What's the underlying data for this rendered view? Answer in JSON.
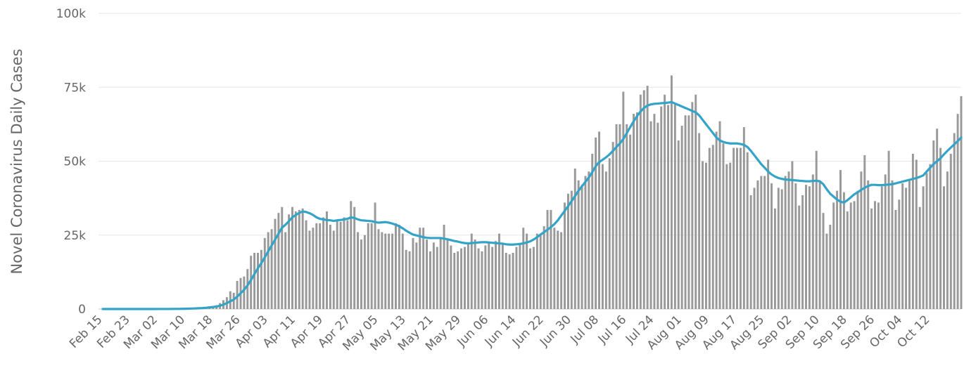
{
  "chart_data": {
    "type": "bar",
    "title": "",
    "ylabel": "Novel Coronavirus Daily Cases",
    "xlabel": "",
    "ylim": [
      0,
      100000
    ],
    "y_ticks": [
      0,
      25000,
      50000,
      75000,
      100000
    ],
    "y_tick_labels": [
      "0",
      "25k",
      "50k",
      "75k",
      "100k"
    ],
    "x_start": "2020-02-15",
    "x_end": "2020-10-16",
    "x_tick_labels": [
      "Feb 15",
      "Feb 23",
      "Mar 02",
      "Mar 10",
      "Mar 18",
      "Mar 26",
      "Apr 03",
      "Apr 11",
      "Apr 19",
      "Apr 27",
      "May 05",
      "May 13",
      "May 21",
      "May 29",
      "Jun 06",
      "Jun 14",
      "Jun 22",
      "Jun 30",
      "Jul 08",
      "Jul 16",
      "Jul 24",
      "Aug 01",
      "Aug 09",
      "Aug 17",
      "Aug 25",
      "Sep 02",
      "Sep 10",
      "Sep 18",
      "Sep 26",
      "Oct 04",
      "Oct 12"
    ],
    "grid": "horizontal",
    "colors": {
      "bars": "#999999",
      "moving_average": "#33a3c8",
      "grid": "#e6e6e6",
      "text": "#666666"
    },
    "series": [
      {
        "type": "bar",
        "values": [
          0,
          0,
          0,
          0,
          0,
          0,
          0,
          0,
          0,
          0,
          0,
          0,
          0,
          0,
          0,
          0,
          10,
          10,
          20,
          20,
          30,
          50,
          60,
          80,
          100,
          200,
          250,
          300,
          400,
          500,
          700,
          900,
          1000,
          1300,
          2000,
          3000,
          4000,
          6000,
          5500,
          9500,
          10500,
          11000,
          13500,
          18000,
          19000,
          19000,
          20000,
          24000,
          26000,
          27000,
          30500,
          32500,
          34500,
          26000,
          32000,
          34500,
          33000,
          33500,
          34000,
          30000,
          26500,
          27500,
          29000,
          29000,
          31000,
          33000,
          28500,
          26500,
          30000,
          29500,
          31000,
          30000,
          36500,
          34500,
          26000,
          23500,
          25000,
          29000,
          29000,
          36000,
          27000,
          26000,
          25500,
          25500,
          25500,
          29000,
          28500,
          25500,
          20000,
          19500,
          24000,
          22500,
          27500,
          27500,
          23500,
          19500,
          22500,
          21000,
          24000,
          28500,
          23500,
          21500,
          19000,
          19500,
          20500,
          21000,
          22000,
          25500,
          23500,
          20500,
          19500,
          21500,
          22500,
          21000,
          23000,
          25500,
          22000,
          19000,
          18500,
          19000,
          21000,
          22000,
          27500,
          25500,
          20500,
          21000,
          25500,
          25000,
          28000,
          33500,
          33500,
          27500,
          26500,
          26000,
          36000,
          39000,
          40000,
          47500,
          43500,
          42000,
          45000,
          46500,
          52500,
          58000,
          60000,
          49000,
          46500,
          51000,
          56500,
          62500,
          62500,
          73500,
          62500,
          59000,
          66000,
          66500,
          72500,
          74000,
          75500,
          63500,
          66000,
          63000,
          68500,
          72500,
          69000,
          79000,
          69500,
          57000,
          62000,
          65500,
          65500,
          70000,
          72500,
          59500,
          50000,
          49500,
          54500,
          55500,
          60000,
          63500,
          56000,
          49000,
          49500,
          54500,
          54500,
          54500,
          61500,
          53000,
          38500,
          41000,
          43500,
          45000,
          45000,
          50500,
          42500,
          34000,
          41000,
          40500,
          45000,
          46500,
          50000,
          42500,
          35000,
          38500,
          42000,
          41500,
          45500,
          53500,
          43500,
          32500,
          25500,
          28500,
          36000,
          40000,
          47000,
          39500,
          33000,
          36000,
          36500,
          40000,
          46500,
          52000,
          43500,
          34000,
          36500,
          36000,
          41500,
          45500,
          53500,
          43500,
          33500,
          37000,
          42500,
          41000,
          44000,
          52500,
          50500,
          34500,
          41500,
          46000,
          49000,
          57000,
          61000,
          54500,
          41500,
          46500,
          52500,
          59500,
          66000,
          72000
        ]
      },
      {
        "type": "line",
        "name": "",
        "values": [
          0,
          0,
          0,
          0,
          0,
          0,
          0,
          0,
          0,
          0,
          0,
          0,
          0,
          0,
          0,
          0,
          10,
          10,
          20,
          20,
          30,
          40,
          50,
          60,
          80,
          120,
          160,
          200,
          260,
          330,
          430,
          560,
          680,
          830,
          1100,
          1500,
          2000,
          2600,
          3200,
          4200,
          5300,
          6500,
          8000,
          9800,
          11800,
          13800,
          15500,
          17500,
          19500,
          21500,
          23500,
          25500,
          27500,
          28500,
          29700,
          31000,
          31800,
          32500,
          33000,
          32800,
          32400,
          31800,
          31000,
          30500,
          30300,
          30100,
          30000,
          29800,
          30000,
          30100,
          30300,
          30500,
          31000,
          30800,
          30300,
          30000,
          29900,
          29800,
          29700,
          29400,
          29200,
          29300,
          29400,
          29200,
          28900,
          28500,
          28000,
          27300,
          26500,
          25800,
          25200,
          24900,
          24600,
          24300,
          24100,
          24000,
          24000,
          24000,
          24000,
          23800,
          23600,
          23300,
          23000,
          22800,
          22500,
          22300,
          22200,
          22300,
          22400,
          22500,
          22600,
          22600,
          22500,
          22400,
          22300,
          22200,
          22100,
          21900,
          21800,
          21800,
          21900,
          22000,
          22200,
          22500,
          22900,
          23500,
          24300,
          25200,
          26000,
          26800,
          27700,
          28700,
          30000,
          31600,
          33200,
          34800,
          36500,
          38200,
          40000,
          41500,
          43000,
          44500,
          46300,
          48300,
          49700,
          50500,
          51300,
          52300,
          53500,
          54800,
          56000,
          57500,
          59500,
          61500,
          63500,
          65300,
          66800,
          68000,
          68800,
          69200,
          69400,
          69500,
          69600,
          69700,
          69800,
          70000,
          69500,
          69000,
          68500,
          68000,
          67500,
          67000,
          66500,
          65500,
          64000,
          62500,
          61000,
          59500,
          58000,
          57000,
          56500,
          56200,
          56000,
          56000,
          56000,
          55800,
          55500,
          54800,
          53500,
          52000,
          50500,
          49000,
          47800,
          46500,
          45500,
          44800,
          44300,
          44000,
          43800,
          43700,
          43600,
          43500,
          43400,
          43300,
          43200,
          43200,
          43300,
          43400,
          43200,
          42200,
          40500,
          39000,
          38000,
          37000,
          36300,
          36000,
          36800,
          37800,
          38800,
          39500,
          40300,
          41000,
          41600,
          42000,
          42000,
          41900,
          41900,
          42000,
          42100,
          42200,
          42500,
          42800,
          43100,
          43400,
          43700,
          44000,
          44300,
          44700,
          45200,
          46500,
          47800,
          49000,
          50000,
          51000,
          52300,
          53500,
          54600,
          55700,
          56800,
          58000
        ]
      }
    ]
  }
}
